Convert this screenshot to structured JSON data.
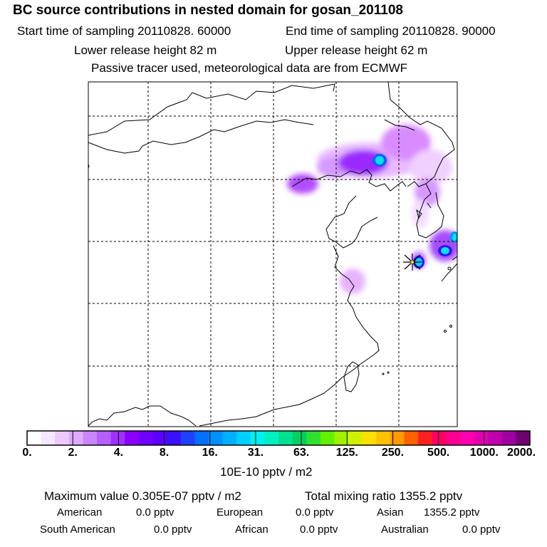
{
  "header": {
    "title": "BC  source contributions in nested domain for gosan_201108",
    "start": "Start time of sampling 20110828. 60000",
    "end": "End time of sampling 20110828. 90000",
    "lower": "Lower release height   82 m",
    "upper": "Upper release height   62 m",
    "note": "Passive tracer used, meteorological data are from ECMWF"
  },
  "colorbar": {
    "tick_labels": [
      "0.",
      "2.",
      "4.",
      "8.",
      "16.",
      "31.",
      "63.",
      "125.",
      "250.",
      "500.",
      "1000.",
      "2000."
    ],
    "colors": [
      "#ffffff",
      "#f6e6ff",
      "#eccaff",
      "#e0aaff",
      "#c985ff",
      "#b65eff",
      "#a030ff",
      "#8a00ff",
      "#7000ff",
      "#5a00ff",
      "#3a10ff",
      "#2040ff",
      "#0070ff",
      "#0090ff",
      "#00b0ff",
      "#00d0ff",
      "#00f0f0",
      "#00f0c0",
      "#00e090",
      "#00d060",
      "#30e030",
      "#60f000",
      "#a0f000",
      "#d0f000",
      "#ffe000",
      "#ffc000",
      "#ff9a00",
      "#ff6000",
      "#ff2020",
      "#ff0060",
      "#ff0090",
      "#ff00b0",
      "#e000b0",
      "#c000b0",
      "#a000a0",
      "#700070"
    ],
    "units": "10E-10 pptv / m2"
  },
  "summary": {
    "max": "Maximum value  0.305E-07 pptv / m2",
    "total": "Total mixing ratio      1355.2 pptv",
    "american_label": "American",
    "american_value": "0.0 pptv",
    "european_label": "European",
    "european_value": "0.0 pptv",
    "asian_label": "Asian",
    "asian_value": "1355.2 pptv",
    "south_american_label": "South American",
    "south_american_value": "0.0 pptv",
    "african_label": "African",
    "african_value": "0.0 pptv",
    "australian_label": "Australian",
    "australian_value": "0.0 pptv"
  }
}
